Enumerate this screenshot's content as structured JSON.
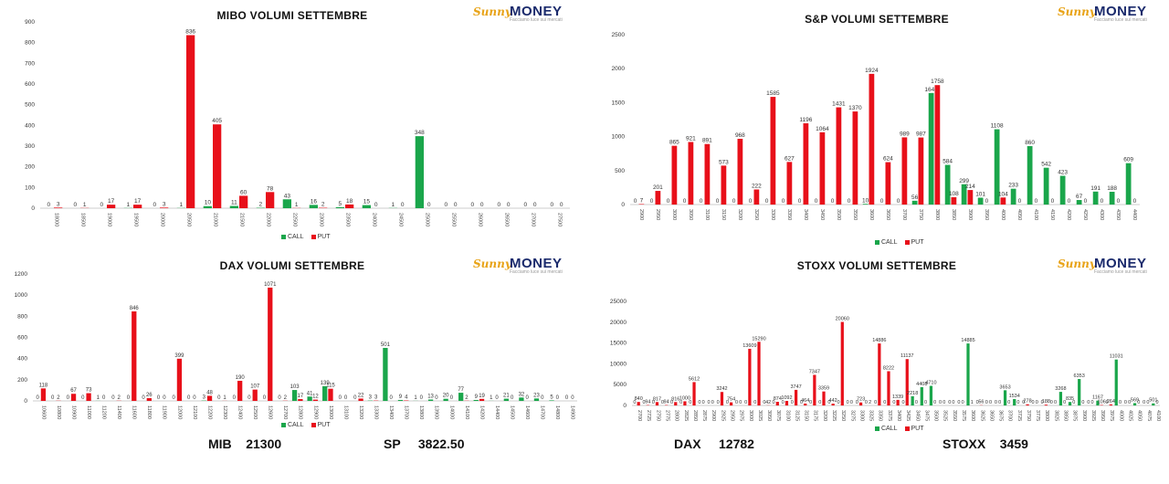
{
  "logo": {
    "brand_prefix": "Sunny",
    "brand_main": "MONEY",
    "tagline": "Facciamo luce sui mercati"
  },
  "colors": {
    "call": "#1aa64b",
    "put": "#e8101a",
    "axis": "#bbbbbb",
    "text": "#333333"
  },
  "legend": {
    "call": "CALL",
    "put": "PUT"
  },
  "summary": [
    {
      "label": "MIB",
      "value": "21300"
    },
    {
      "label": "SP",
      "value": "3822.50"
    },
    {
      "label": "DAX",
      "value": "12782"
    },
    {
      "label": "STOXX",
      "value": "3459"
    }
  ],
  "chart_data": [
    {
      "type": "bar",
      "title": "MIBO VOLUMI SETTEMBRE",
      "ylim": [
        0,
        900
      ],
      "yticks": [
        0,
        100,
        200,
        300,
        400,
        500,
        600,
        700,
        800,
        900
      ],
      "categories": [
        "18000",
        "18500",
        "19000",
        "19500",
        "20000",
        "20500",
        "21000",
        "21500",
        "22000",
        "22500",
        "23000",
        "23500",
        "24000",
        "24500",
        "25000",
        "25500",
        "26000",
        "26500",
        "27000",
        "27500"
      ],
      "series": [
        {
          "name": "CALL",
          "values": [
            0,
            0,
            0,
            1,
            0,
            1,
            10,
            11,
            2,
            43,
            16,
            5,
            15,
            1,
            348,
            0,
            0,
            0,
            0,
            0
          ]
        },
        {
          "name": "PUT",
          "values": [
            3,
            1,
            17,
            17,
            3,
            836,
            405,
            60,
            78,
            1,
            2,
            18,
            0,
            0,
            0,
            0,
            0,
            0,
            0,
            0
          ]
        }
      ]
    },
    {
      "type": "bar",
      "title": "S&P VOLUMI SETTEMBRE",
      "ylim": [
        0,
        2500
      ],
      "yticks": [
        0,
        500,
        1000,
        1500,
        2000,
        2500
      ],
      "categories": [
        "2900",
        "2950",
        "3000",
        "3050",
        "3100",
        "3150",
        "3200",
        "3250",
        "3300",
        "3350",
        "3400",
        "3450",
        "3500",
        "3550",
        "3600",
        "3650",
        "3700",
        "3750",
        "3800",
        "3850",
        "3900",
        "3950",
        "4000",
        "4050",
        "4100",
        "4150",
        "4200",
        "4250",
        "4300",
        "4350",
        "4400"
      ],
      "series": [
        {
          "name": "CALL",
          "values": [
            0,
            0,
            0,
            0,
            0,
            0,
            0,
            0,
            0,
            0,
            0,
            0,
            0,
            0,
            10,
            0,
            0,
            56,
            1642,
            584,
            299,
            101,
            1108,
            233,
            860,
            542,
            423,
            67,
            191,
            188,
            609
          ]
        },
        {
          "name": "PUT",
          "values": [
            7,
            201,
            865,
            921,
            891,
            573,
            968,
            222,
            1585,
            627,
            1196,
            1064,
            1431,
            1370,
            1924,
            624,
            989,
            987,
            1758,
            108,
            214,
            0,
            104,
            0,
            0,
            0,
            0,
            0,
            0,
            0,
            0
          ]
        }
      ]
    },
    {
      "type": "bar",
      "title": "DAX VOLUMI SETTEMBRE",
      "ylim": [
        0,
        1200
      ],
      "yticks": [
        0,
        200,
        400,
        600,
        800,
        1000,
        1200
      ],
      "categories": [
        "10600",
        "10800",
        "10900",
        "11000",
        "11200",
        "11400",
        "11600",
        "11800",
        "11900",
        "12000",
        "12100",
        "12200",
        "12300",
        "12400",
        "12500",
        "12600",
        "12700",
        "12800",
        "12900",
        "13000",
        "13100",
        "13200",
        "13300",
        "13400",
        "13700",
        "13800",
        "13900",
        "14000",
        "14100",
        "14200",
        "14400",
        "14500",
        "14600",
        "14700",
        "14800",
        "14900"
      ],
      "series": [
        {
          "name": "CALL",
          "values": [
            0,
            0,
            0,
            0,
            1,
            0,
            0,
            0,
            0,
            0,
            0,
            3,
            0,
            0,
            0,
            0,
            0,
            103,
            41,
            139,
            0,
            0,
            3,
            501,
            9,
            1,
            13,
            20,
            77,
            9,
            1,
            21,
            32,
            23,
            5,
            0
          ]
        },
        {
          "name": "PUT",
          "values": [
            118,
            2,
            67,
            73,
            0,
            2,
            846,
            26,
            0,
            399,
            0,
            48,
            1,
            190,
            107,
            1071,
            2,
            17,
            12,
            115,
            0,
            22,
            3,
            0,
            4,
            0,
            0,
            0,
            2,
            19,
            0,
            0,
            0,
            0,
            0,
            0
          ]
        }
      ]
    },
    {
      "type": "bar",
      "title": "STOXX VOLUMI SETTEMBRE",
      "ylim": [
        0,
        25000
      ],
      "yticks": [
        0,
        5000,
        10000,
        15000,
        20000,
        25000
      ],
      "categories": [
        "2700",
        "2725",
        "2750",
        "2775",
        "2800",
        "2825",
        "2850",
        "2875",
        "2900",
        "2925",
        "2950",
        "2975",
        "3000",
        "3025",
        "3050",
        "3075",
        "3100",
        "3125",
        "3150",
        "3175",
        "3200",
        "3225",
        "3250",
        "3275",
        "3300",
        "3325",
        "3350",
        "3375",
        "3400",
        "3425",
        "3450",
        "3475",
        "3500",
        "3525",
        "3550",
        "3575",
        "3600",
        "3625",
        "3650",
        "3675",
        "3700",
        "3725",
        "3750",
        "3775",
        "3800",
        "3825",
        "3850",
        "3875",
        "3900",
        "3925",
        "3950",
        "3975",
        "4000",
        "4025",
        "4050",
        "4075",
        "4100"
      ],
      "series": [
        {
          "name": "CALL",
          "values": [
            0,
            0,
            0,
            0,
            0,
            0,
            0,
            0,
            0,
            0,
            0,
            0,
            0,
            0,
            0,
            0,
            0,
            0,
            0,
            0,
            0,
            0,
            0,
            0,
            0,
            0,
            0,
            0,
            0,
            0,
            2218,
            4408,
            4710,
            0,
            0,
            0,
            14885,
            0,
            0,
            0,
            3653,
            1534,
            0,
            0,
            0,
            0,
            3268,
            835,
            6353,
            0,
            1167,
            0,
            11031,
            0,
            569,
            0,
            501
          ]
        },
        {
          "name": "PUT",
          "values": [
            840,
            94,
            817,
            94,
            816,
            1000,
            5612,
            0,
            0,
            3242,
            754,
            0,
            13609,
            15290,
            42,
            874,
            1092,
            3747,
            464,
            7347,
            3359,
            442,
            20060,
            0,
            723,
            2,
            14886,
            8222,
            1339,
            11137,
            0,
            0,
            0,
            0,
            0,
            0,
            1,
            56,
            0,
            0,
            0,
            0,
            278,
            0,
            188,
            0,
            0,
            0,
            0,
            0,
            106,
            264,
            0,
            0,
            0,
            0,
            0
          ]
        }
      ]
    }
  ]
}
